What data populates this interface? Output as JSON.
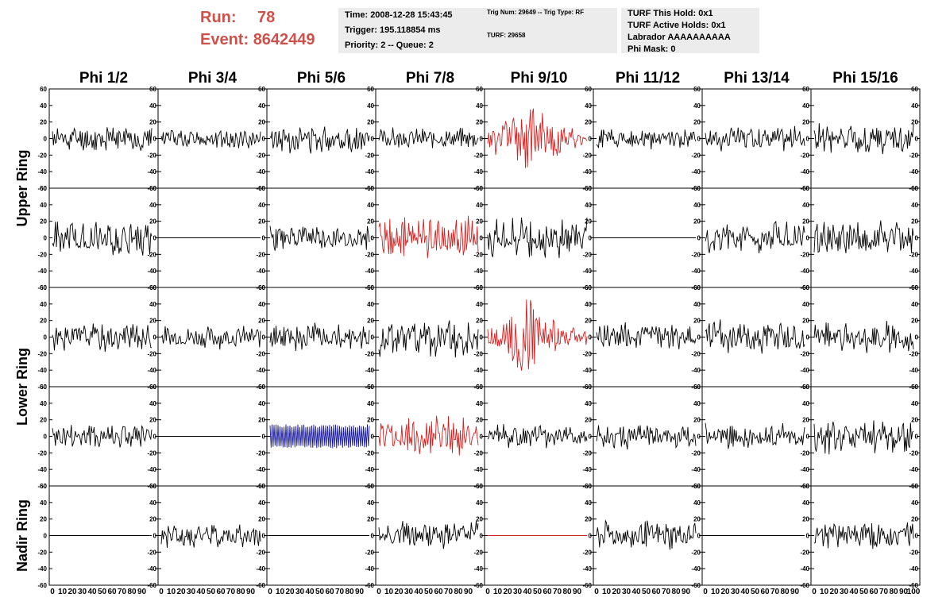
{
  "header": {
    "run_label": "Run:",
    "run_value": "78",
    "event_label": "Event:",
    "event_value": "8642449",
    "time": "Time: 2008-12-28 15:43:45",
    "trigger": "Trigger: 195.118854 ms",
    "priority": "Priority: 2 -- Queue: 2",
    "trig_num": "Trig Num: 29649 -- Trig Type: RF",
    "turf": "TURF: 29658",
    "turf_this_hold": "TURF This Hold: 0x1",
    "turf_active_holds": "TURF Active Holds: 0x1",
    "labrador": "Labrador AAAAAAAAAA",
    "phi_mask": "Phi Mask: 0"
  },
  "colors": {
    "header_text": "#d0504a",
    "info_bg": "#ececec",
    "trace_default": "#000000",
    "trace_red": "#d42020",
    "trace_blue": "#1a1aa0"
  },
  "chart_data": {
    "type": "line",
    "columns": [
      "Phi 1/2",
      "Phi 3/4",
      "Phi 5/6",
      "Phi 7/8",
      "Phi 9/10",
      "Phi 11/12",
      "Phi 13/14",
      "Phi 15/16"
    ],
    "ring_labels": [
      {
        "label": "Upper Ring",
        "rows": [
          0,
          1
        ]
      },
      {
        "label": "Lower Ring",
        "rows": [
          2,
          3
        ]
      },
      {
        "label": "Nadir Ring",
        "rows": [
          4
        ]
      }
    ],
    "y_ticks": [
      "-60",
      "-40",
      "-20",
      "0",
      "20",
      "40",
      "60"
    ],
    "x_ticks": [
      "0",
      "10",
      "20",
      "30",
      "40",
      "50",
      "60",
      "70",
      "80",
      "90",
      "100"
    ],
    "xlim": [
      0,
      100
    ],
    "ylim": [
      -60,
      60
    ],
    "grid": false,
    "panels": [
      [
        {
          "color": "black",
          "amplitude": 13,
          "flat": false,
          "seed": 11
        },
        {
          "color": "black",
          "amplitude": 10,
          "flat": false,
          "seed": 12
        },
        {
          "color": "black",
          "amplitude": 14,
          "flat": false,
          "seed": 13
        },
        {
          "color": "black",
          "amplitude": 10,
          "flat": false,
          "seed": 14
        },
        {
          "color": "red",
          "amplitude": 24,
          "flat": false,
          "seed": 15,
          "envelope": true
        },
        {
          "color": "black",
          "amplitude": 10,
          "flat": false,
          "seed": 16
        },
        {
          "color": "black",
          "amplitude": 12,
          "flat": false,
          "seed": 17
        },
        {
          "color": "black",
          "amplitude": 15,
          "flat": false,
          "seed": 18
        }
      ],
      [
        {
          "color": "black",
          "amplitude": 17,
          "flat": false,
          "seed": 21
        },
        {
          "color": "black",
          "amplitude": 0,
          "flat": true,
          "seed": 22
        },
        {
          "color": "black",
          "amplitude": 13,
          "flat": false,
          "seed": 23
        },
        {
          "color": "red",
          "amplitude": 22,
          "flat": false,
          "seed": 24
        },
        {
          "color": "black",
          "amplitude": 19,
          "flat": false,
          "seed": 25
        },
        {
          "color": "black",
          "amplitude": 0,
          "flat": true,
          "seed": 26
        },
        {
          "color": "black",
          "amplitude": 15,
          "flat": false,
          "seed": 27
        },
        {
          "color": "black",
          "amplitude": 18,
          "flat": false,
          "seed": 28
        }
      ],
      [
        {
          "color": "black",
          "amplitude": 14,
          "flat": false,
          "seed": 31
        },
        {
          "color": "black",
          "amplitude": 11,
          "flat": false,
          "seed": 32
        },
        {
          "color": "black",
          "amplitude": 13,
          "flat": false,
          "seed": 33
        },
        {
          "color": "black",
          "amplitude": 19,
          "flat": false,
          "seed": 34
        },
        {
          "color": "red",
          "amplitude": 22,
          "flat": false,
          "seed": 35,
          "envelope": true
        },
        {
          "color": "black",
          "amplitude": 13,
          "flat": false,
          "seed": 36
        },
        {
          "color": "black",
          "amplitude": 18,
          "flat": false,
          "seed": 37
        },
        {
          "color": "black",
          "amplitude": 15,
          "flat": false,
          "seed": 38
        }
      ],
      [
        {
          "color": "black",
          "amplitude": 14,
          "flat": false,
          "seed": 41
        },
        {
          "color": "black",
          "amplitude": 0,
          "flat": true,
          "seed": 42
        },
        {
          "color": "blue",
          "amplitude": 16,
          "flat": false,
          "seed": 43,
          "regular": true
        },
        {
          "color": "red",
          "amplitude": 20,
          "flat": false,
          "seed": 44
        },
        {
          "color": "black",
          "amplitude": 11,
          "flat": false,
          "seed": 45
        },
        {
          "color": "black",
          "amplitude": 12,
          "flat": false,
          "seed": 46
        },
        {
          "color": "black",
          "amplitude": 12,
          "flat": false,
          "seed": 47
        },
        {
          "color": "black",
          "amplitude": 19,
          "flat": false,
          "seed": 48
        }
      ],
      [
        {
          "color": "black",
          "amplitude": 0,
          "flat": true,
          "seed": 51
        },
        {
          "color": "black",
          "amplitude": 12,
          "flat": false,
          "seed": 52
        },
        {
          "color": "black",
          "amplitude": 0,
          "flat": true,
          "seed": 53
        },
        {
          "color": "black",
          "amplitude": 14,
          "flat": false,
          "seed": 54
        },
        {
          "color": "red",
          "amplitude": 0,
          "flat": true,
          "seed": 55
        },
        {
          "color": "black",
          "amplitude": 14,
          "flat": false,
          "seed": 56
        },
        {
          "color": "black",
          "amplitude": 0,
          "flat": true,
          "seed": 57
        },
        {
          "color": "black",
          "amplitude": 13,
          "flat": false,
          "seed": 58
        }
      ]
    ]
  }
}
